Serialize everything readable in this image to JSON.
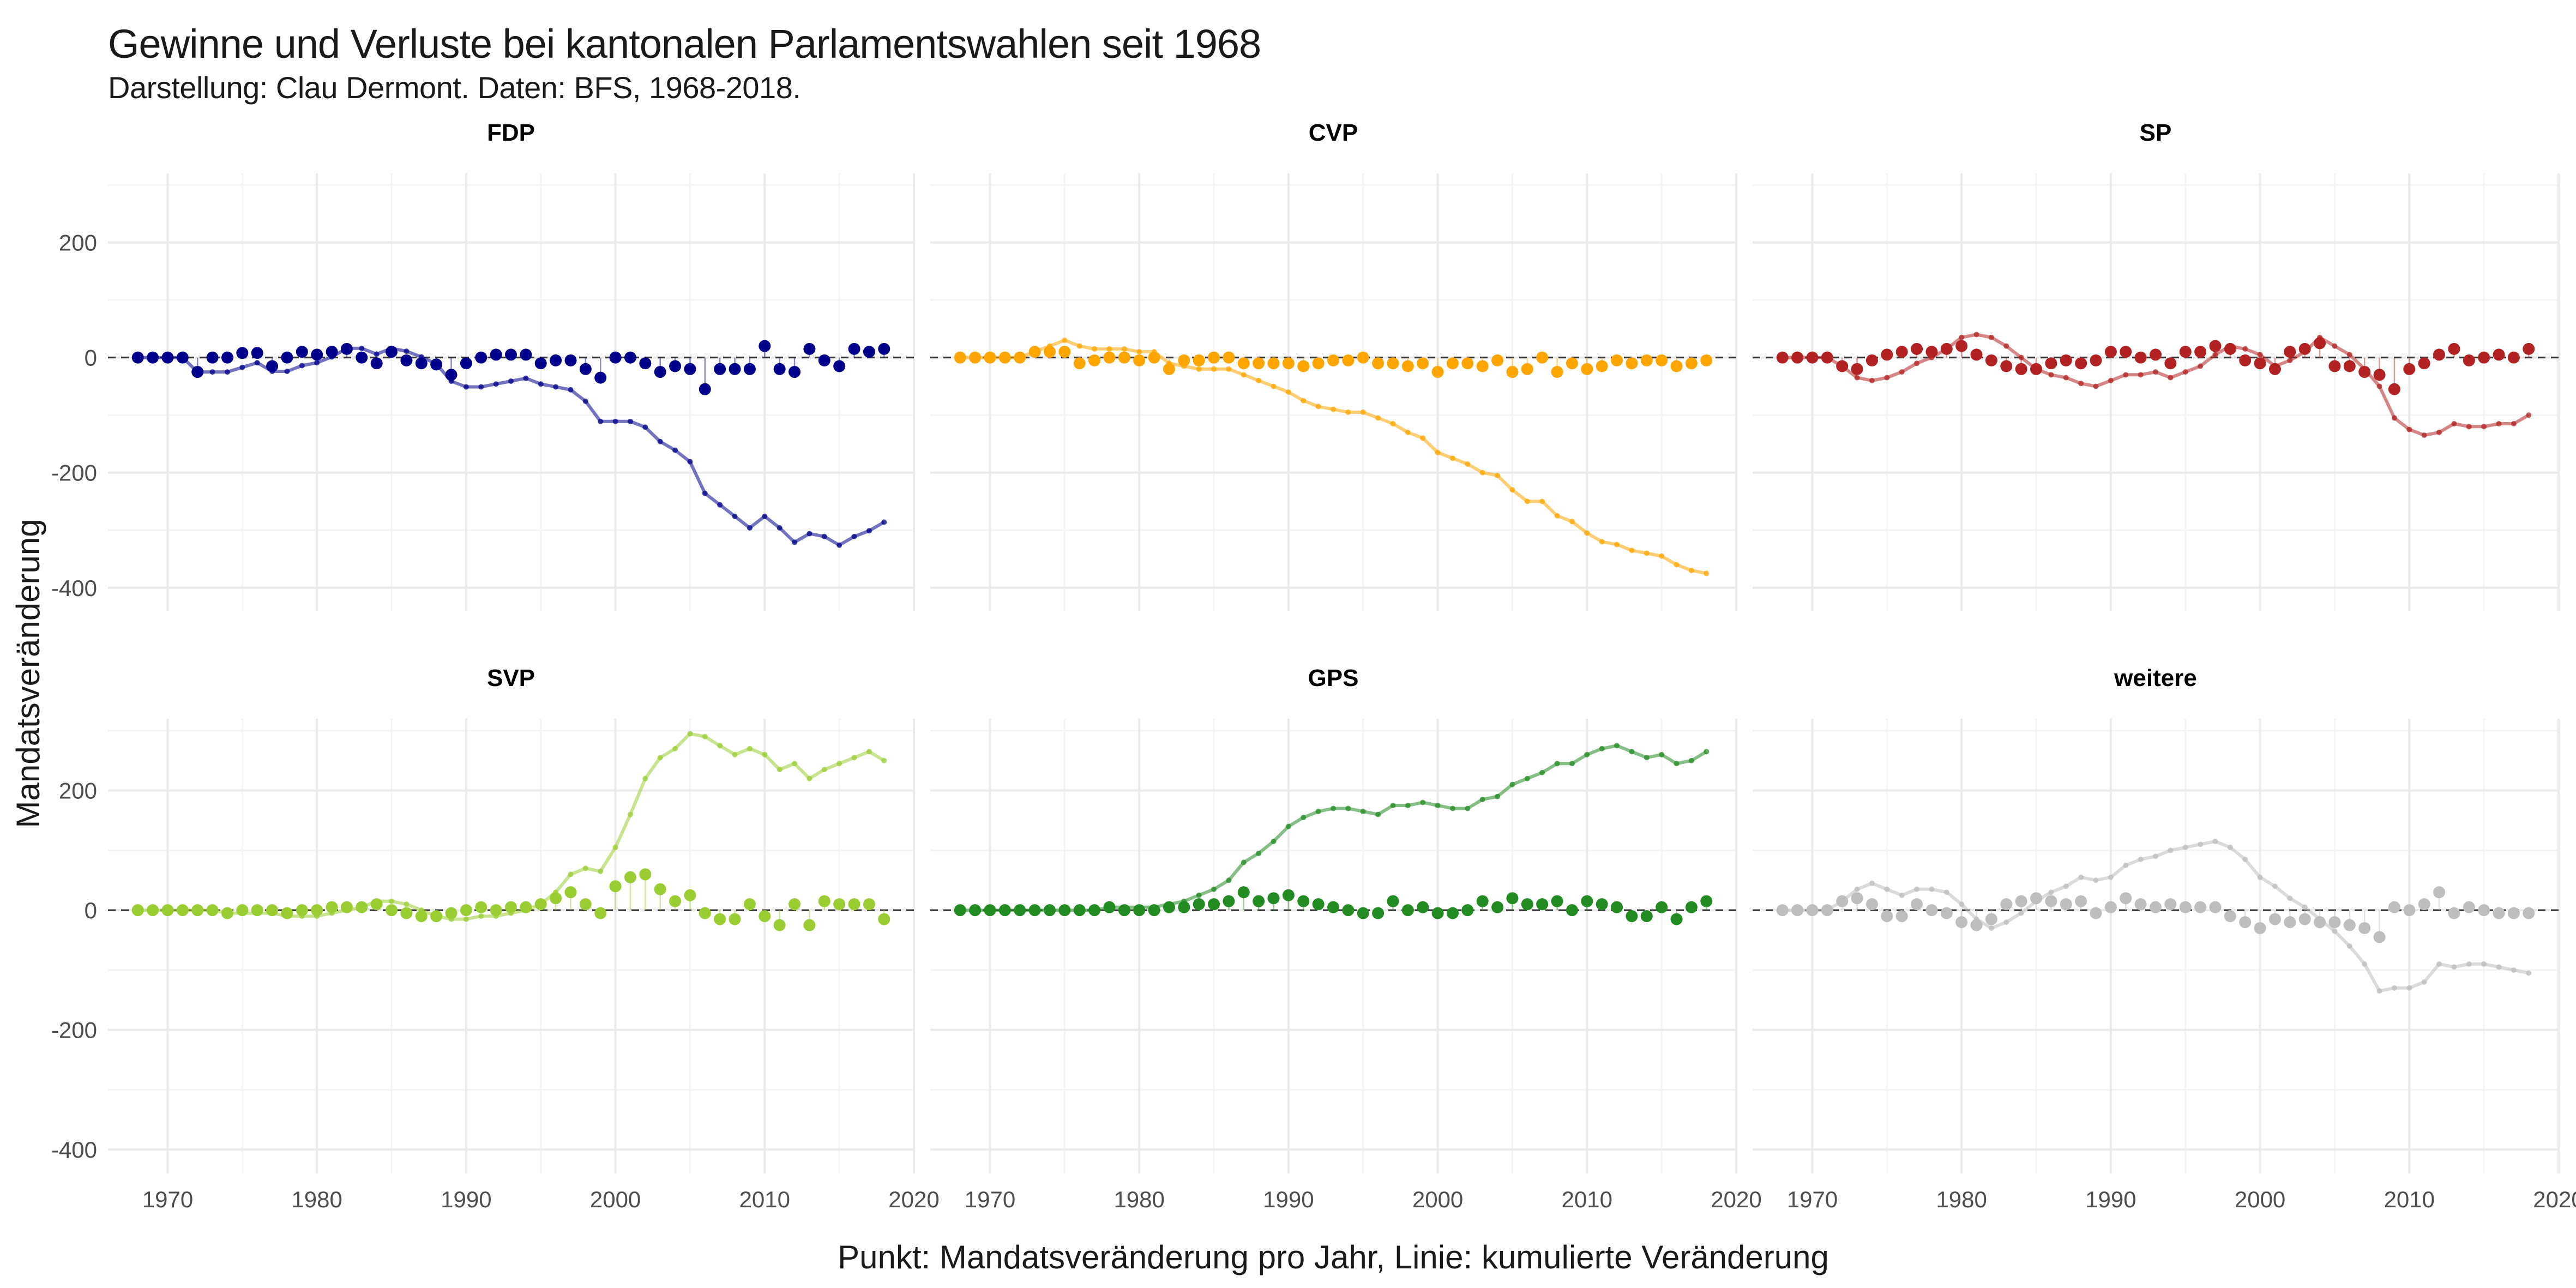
{
  "title": "Gewinne und Verluste bei kantonalen Parlamentswahlen seit 1968",
  "subtitle": "Darstellung: Clau Dermont. Daten: BFS, 1968-2018.",
  "chart_data": {
    "type": "line",
    "xlabel": "Punkt: Mandatsveränderung pro Jahr, Linie: kumulierte Veränderung",
    "ylabel": "Mandatsveränderung",
    "xlim": [
      1966,
      2020
    ],
    "ylim": [
      -440,
      320
    ],
    "x_ticks": [
      1970,
      1980,
      1990,
      2000,
      2010,
      2020
    ],
    "y_ticks": [
      -400,
      -200,
      0,
      200
    ],
    "reference_line": 0,
    "grid": true,
    "legend": "none",
    "facet_cols": 3,
    "x": [
      1968,
      1969,
      1970,
      1971,
      1972,
      1973,
      1974,
      1975,
      1976,
      1977,
      1978,
      1979,
      1980,
      1981,
      1982,
      1983,
      1984,
      1985,
      1986,
      1987,
      1988,
      1989,
      1990,
      1991,
      1992,
      1993,
      1994,
      1995,
      1996,
      1997,
      1998,
      1999,
      2000,
      2001,
      2002,
      2003,
      2004,
      2005,
      2006,
      2007,
      2008,
      2009,
      2010,
      2011,
      2012,
      2013,
      2014,
      2015,
      2016,
      2017,
      2018
    ],
    "panels": [
      {
        "name": "FDP",
        "color": "#00008B",
        "values": [
          0,
          0,
          0,
          0,
          -25,
          0,
          0,
          8,
          8,
          -15,
          0,
          10,
          5,
          10,
          15,
          0,
          -10,
          10,
          -5,
          -10,
          -12,
          -30,
          -10,
          0,
          5,
          5,
          5,
          -10,
          -5,
          -5,
          -20,
          -35,
          0,
          0,
          -10,
          -25,
          -15,
          -20,
          -55,
          -20,
          -20,
          -20,
          20,
          -20,
          -25,
          15,
          -5,
          -15,
          15,
          10,
          15
        ],
        "cumulative": [
          0,
          0,
          0,
          0,
          -25,
          -25,
          -25,
          -17,
          -9,
          -24,
          -24,
          -14,
          -9,
          1,
          16,
          16,
          6,
          16,
          11,
          1,
          -11,
          -41,
          -51,
          -51,
          -46,
          -41,
          -36,
          -46,
          -51,
          -56,
          -76,
          -111,
          -111,
          -111,
          -121,
          -146,
          -161,
          -181,
          -236,
          -256,
          -276,
          -296,
          -276,
          -296,
          -321,
          -306,
          -311,
          -326,
          -311,
          -301,
          -286
        ]
      },
      {
        "name": "CVP",
        "color": "#FFA500",
        "values": [
          0,
          0,
          0,
          0,
          0,
          10,
          10,
          10,
          -10,
          -5,
          0,
          0,
          -5,
          0,
          -20,
          -5,
          -5,
          0,
          0,
          -10,
          -10,
          -10,
          -10,
          -15,
          -10,
          -5,
          -5,
          0,
          -10,
          -10,
          -15,
          -10,
          -25,
          -10,
          -10,
          -15,
          -5,
          -25,
          -20,
          0,
          -25,
          -10,
          -20,
          -15,
          -5,
          -10,
          -5,
          -5,
          -15,
          -10,
          -5
        ],
        "cumulative": [
          0,
          0,
          0,
          0,
          0,
          10,
          20,
          30,
          20,
          15,
          15,
          15,
          10,
          10,
          -10,
          -15,
          -20,
          -20,
          -20,
          -30,
          -40,
          -50,
          -60,
          -75,
          -85,
          -90,
          -95,
          -95,
          -105,
          -115,
          -130,
          -140,
          -165,
          -175,
          -185,
          -200,
          -205,
          -230,
          -250,
          -250,
          -275,
          -285,
          -305,
          -320,
          -325,
          -335,
          -340,
          -345,
          -360,
          -370,
          -375
        ]
      },
      {
        "name": "SP",
        "color": "#B22222",
        "values": [
          0,
          0,
          0,
          0,
          -15,
          -20,
          -5,
          5,
          10,
          15,
          10,
          15,
          20,
          5,
          -5,
          -15,
          -20,
          -20,
          -10,
          -5,
          -10,
          -5,
          10,
          10,
          0,
          5,
          -10,
          10,
          10,
          20,
          15,
          -5,
          -10,
          -20,
          10,
          15,
          25,
          -15,
          -15,
          -25,
          -30,
          -55,
          -20,
          -10,
          5,
          15,
          -5,
          0,
          5,
          0,
          15
        ],
        "cumulative": [
          0,
          0,
          0,
          0,
          -15,
          -35,
          -40,
          -35,
          -25,
          -10,
          0,
          15,
          35,
          40,
          35,
          20,
          0,
          -20,
          -30,
          -35,
          -45,
          -50,
          -40,
          -30,
          -30,
          -25,
          -35,
          -25,
          -15,
          5,
          20,
          15,
          5,
          -15,
          -5,
          10,
          35,
          20,
          5,
          -20,
          -50,
          -105,
          -125,
          -135,
          -130,
          -115,
          -120,
          -120,
          -115,
          -115,
          -100
        ]
      },
      {
        "name": "SVP",
        "color": "#9ACD32",
        "values": [
          0,
          0,
          0,
          0,
          0,
          0,
          -5,
          0,
          0,
          0,
          -5,
          0,
          0,
          5,
          5,
          5,
          10,
          0,
          -5,
          -10,
          -10,
          -5,
          0,
          5,
          0,
          5,
          5,
          10,
          20,
          30,
          10,
          -5,
          40,
          55,
          60,
          35,
          15,
          25,
          -5,
          -15,
          -15,
          10,
          -10,
          -25,
          10,
          -25,
          15,
          10,
          10,
          10,
          -15
        ],
        "cumulative": [
          0,
          0,
          0,
          0,
          0,
          0,
          -5,
          -5,
          -5,
          -5,
          -10,
          -10,
          -10,
          -5,
          0,
          5,
          15,
          15,
          10,
          0,
          -10,
          -15,
          -15,
          -10,
          -10,
          -5,
          0,
          10,
          30,
          60,
          70,
          65,
          105,
          160,
          220,
          255,
          270,
          295,
          290,
          275,
          260,
          270,
          260,
          235,
          245,
          220,
          235,
          245,
          255,
          265,
          250
        ]
      },
      {
        "name": "GPS",
        "color": "#228B22",
        "values": [
          0,
          0,
          0,
          0,
          0,
          0,
          0,
          0,
          0,
          0,
          5,
          0,
          0,
          0,
          5,
          5,
          10,
          10,
          15,
          30,
          15,
          20,
          25,
          15,
          10,
          5,
          0,
          -5,
          -5,
          15,
          0,
          5,
          -5,
          -5,
          0,
          15,
          5,
          20,
          10,
          10,
          15,
          0,
          15,
          10,
          5,
          -10,
          -10,
          5,
          -15,
          5,
          15
        ],
        "cumulative": [
          0,
          0,
          0,
          0,
          0,
          0,
          0,
          0,
          0,
          0,
          5,
          5,
          5,
          5,
          10,
          15,
          25,
          35,
          50,
          80,
          95,
          115,
          140,
          155,
          165,
          170,
          170,
          165,
          160,
          175,
          175,
          180,
          175,
          170,
          170,
          185,
          190,
          210,
          220,
          230,
          245,
          245,
          260,
          270,
          275,
          265,
          255,
          260,
          245,
          250,
          265
        ]
      },
      {
        "name": "weitere",
        "color": "#BEBEBE",
        "values": [
          0,
          0,
          0,
          0,
          15,
          20,
          10,
          -10,
          -10,
          10,
          0,
          -5,
          -20,
          -25,
          -15,
          10,
          15,
          20,
          15,
          10,
          15,
          -5,
          5,
          20,
          10,
          5,
          10,
          5,
          5,
          5,
          -10,
          -20,
          -30,
          -15,
          -20,
          -15,
          -20,
          -20,
          -25,
          -30,
          -45,
          5,
          0,
          10,
          30,
          -5,
          5,
          0,
          -5,
          -5,
          -5
        ],
        "cumulative": [
          0,
          0,
          0,
          0,
          15,
          35,
          45,
          35,
          25,
          35,
          35,
          30,
          10,
          -15,
          -30,
          -20,
          -5,
          15,
          30,
          40,
          55,
          50,
          55,
          75,
          85,
          90,
          100,
          105,
          110,
          115,
          105,
          85,
          55,
          40,
          20,
          5,
          -15,
          -35,
          -60,
          -90,
          -135,
          -130,
          -130,
          -120,
          -90,
          -95,
          -90,
          -90,
          -95,
          -100,
          -105
        ]
      }
    ]
  }
}
